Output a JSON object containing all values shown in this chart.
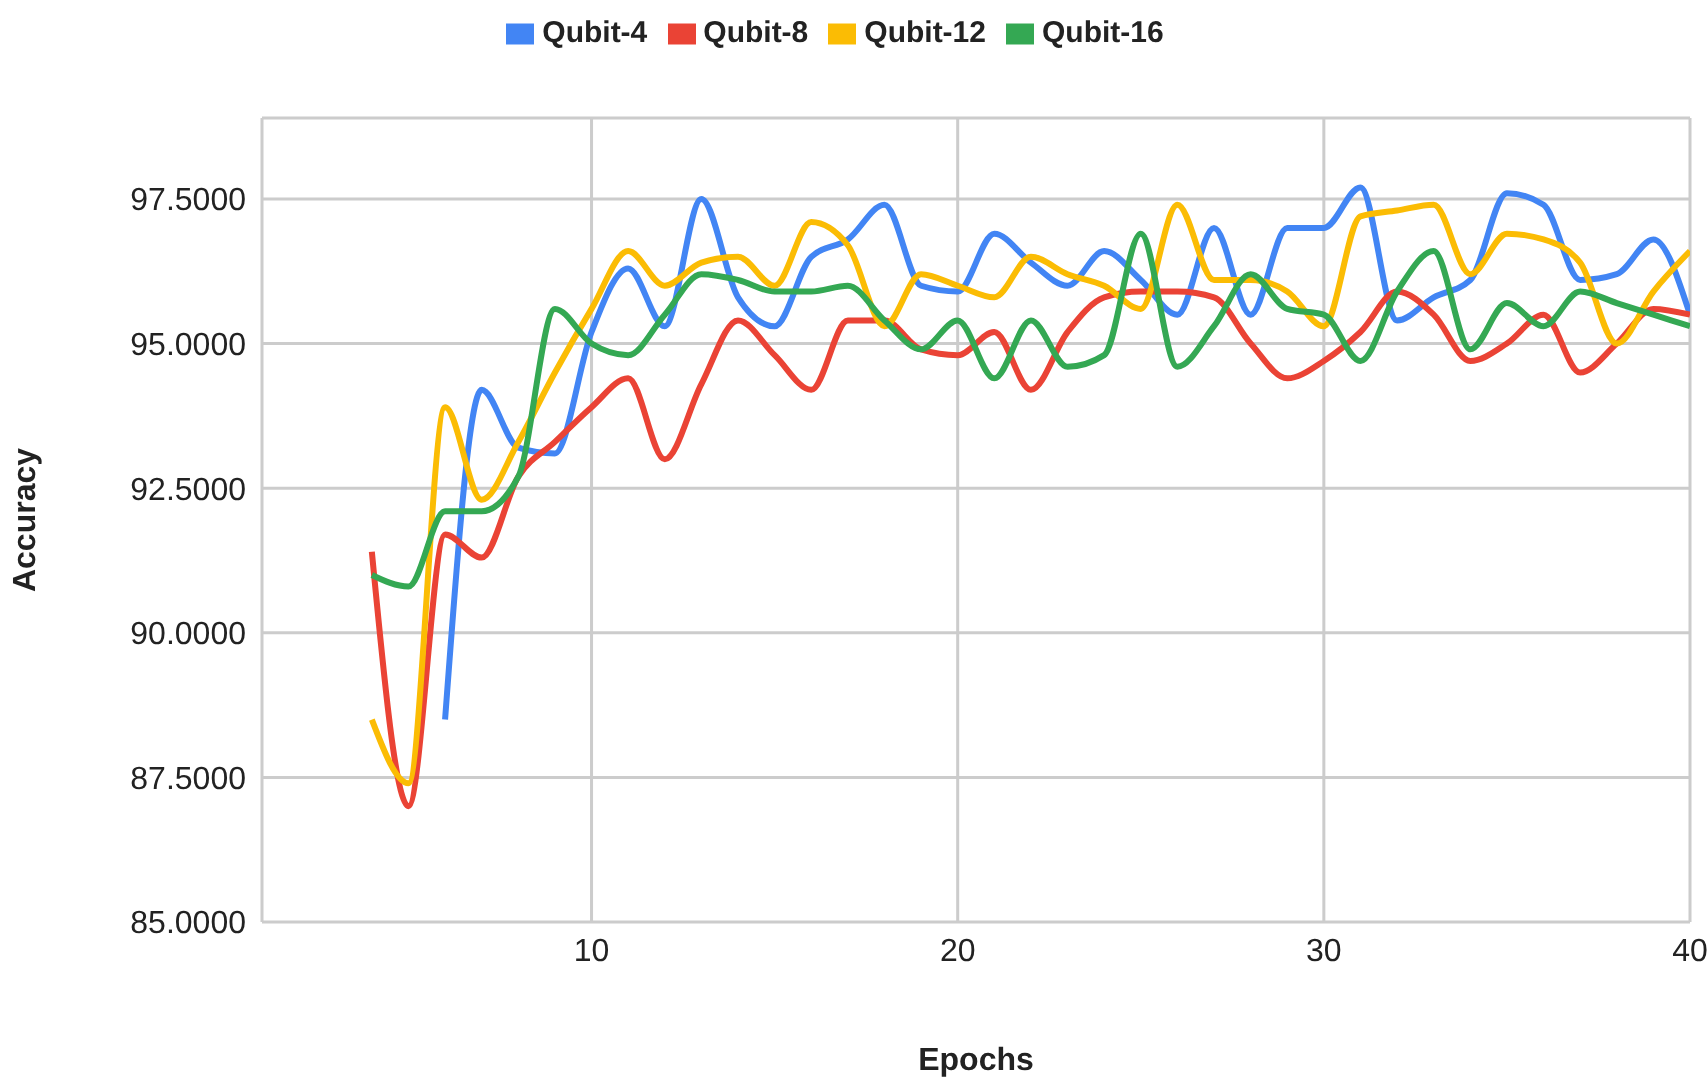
{
  "chart_data": {
    "type": "line",
    "xlabel": "Epochs",
    "ylabel": "Accuracy",
    "x": [
      4,
      5,
      6,
      7,
      8,
      9,
      10,
      11,
      12,
      13,
      14,
      15,
      16,
      17,
      18,
      19,
      20,
      21,
      22,
      23,
      24,
      25,
      26,
      27,
      28,
      29,
      30,
      31,
      32,
      33,
      34,
      35,
      36,
      37,
      38,
      39,
      40
    ],
    "xlim": [
      1,
      40
    ],
    "xticks": [
      10,
      20,
      30,
      40
    ],
    "ylim": [
      85,
      98.9
    ],
    "yticks": [
      {
        "value": 85,
        "label": "85.0000"
      },
      {
        "value": 87.5,
        "label": "87.5000"
      },
      {
        "value": 90,
        "label": "90.0000"
      },
      {
        "value": 92.5,
        "label": "92.5000"
      },
      {
        "value": 95,
        "label": "95.0000"
      },
      {
        "value": 97.5,
        "label": "97.5000"
      }
    ],
    "grid": true,
    "legend": "top",
    "line_style": "solid",
    "series": [
      {
        "name": "Qubit-4",
        "color": "#4285f4",
        "values": [
          null,
          null,
          88.5,
          94.2,
          93.2,
          93.1,
          95.2,
          96.3,
          95.3,
          97.5,
          95.8,
          95.3,
          96.5,
          96.8,
          97.4,
          96.0,
          95.9,
          96.9,
          96.4,
          96.0,
          96.6,
          96.1,
          95.5,
          97.0,
          95.5,
          97.0,
          97.0,
          97.7,
          95.4,
          95.8,
          96.1,
          97.6,
          97.4,
          96.1,
          96.2,
          96.8,
          95.5
        ]
      },
      {
        "name": "Qubit-8",
        "color": "#ea4335",
        "values": [
          91.4,
          87.0,
          91.7,
          91.3,
          92.7,
          93.3,
          93.9,
          94.4,
          93.0,
          94.3,
          95.4,
          94.8,
          94.2,
          95.4,
          95.4,
          94.9,
          94.8,
          95.2,
          94.2,
          95.2,
          95.8,
          95.9,
          95.9,
          95.8,
          95.0,
          94.4,
          94.7,
          95.2,
          95.9,
          95.5,
          94.7,
          95.0,
          95.5,
          94.5,
          95.0,
          95.6,
          95.5
        ]
      },
      {
        "name": "Qubit-12",
        "color": "#fbbc04",
        "values": [
          88.5,
          87.4,
          93.9,
          92.3,
          93.3,
          94.5,
          95.6,
          96.6,
          96.0,
          96.4,
          96.5,
          96.0,
          97.1,
          96.7,
          95.3,
          96.2,
          96.0,
          95.8,
          96.5,
          96.2,
          96.0,
          95.6,
          97.4,
          96.1,
          96.1,
          95.9,
          95.3,
          97.2,
          97.3,
          97.4,
          96.2,
          96.9,
          96.8,
          96.4,
          95.0,
          95.9,
          96.6
        ]
      },
      {
        "name": "Qubit-16",
        "color": "#34a853",
        "values": [
          91.0,
          90.8,
          92.1,
          92.1,
          92.7,
          95.6,
          95.0,
          94.8,
          95.5,
          96.2,
          96.1,
          95.9,
          95.9,
          96.0,
          95.4,
          94.9,
          95.4,
          94.4,
          95.4,
          94.6,
          94.8,
          96.9,
          94.6,
          95.3,
          96.2,
          95.6,
          95.5,
          94.7,
          95.9,
          96.6,
          94.9,
          95.7,
          95.3,
          95.9,
          95.7,
          95.5,
          95.3
        ]
      }
    ]
  }
}
